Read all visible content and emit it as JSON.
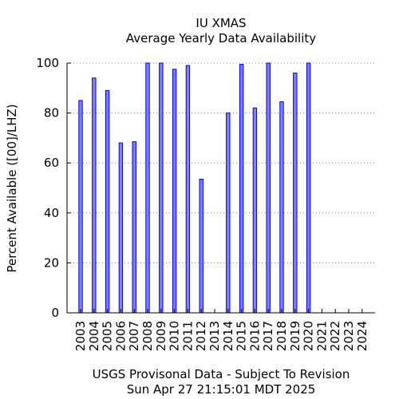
{
  "chart_data": {
    "type": "bar",
    "title": "IU XMAS",
    "subtitle": "Average Yearly Data Availability",
    "xlabel": "",
    "ylabel": "Percent Available ([00]/LHZ)",
    "footer_line1": "USGS Provisonal Data - Subject To Revision",
    "footer_line2": "Sun Apr 27 21:15:01 MDT 2025",
    "categories": [
      "2003",
      "2004",
      "2005",
      "2006",
      "2007",
      "2008",
      "2009",
      "2010",
      "2011",
      "2012",
      "2013",
      "2014",
      "2015",
      "2016",
      "2017",
      "2018",
      "2019",
      "2020",
      "2021",
      "2022",
      "2023",
      "2024"
    ],
    "values": [
      85,
      94,
      89,
      68,
      68.5,
      100,
      100,
      97.5,
      99,
      53.5,
      0,
      80,
      99.5,
      82,
      100,
      84.5,
      96,
      100,
      0,
      0,
      0,
      0
    ],
    "ylim": [
      0,
      100
    ],
    "yticks": [
      0,
      20,
      40,
      60,
      80,
      100
    ],
    "grid": true,
    "bar_color": "#7f7fff",
    "bar_edge_color": "#0000ff",
    "grid_color": "#888888"
  }
}
